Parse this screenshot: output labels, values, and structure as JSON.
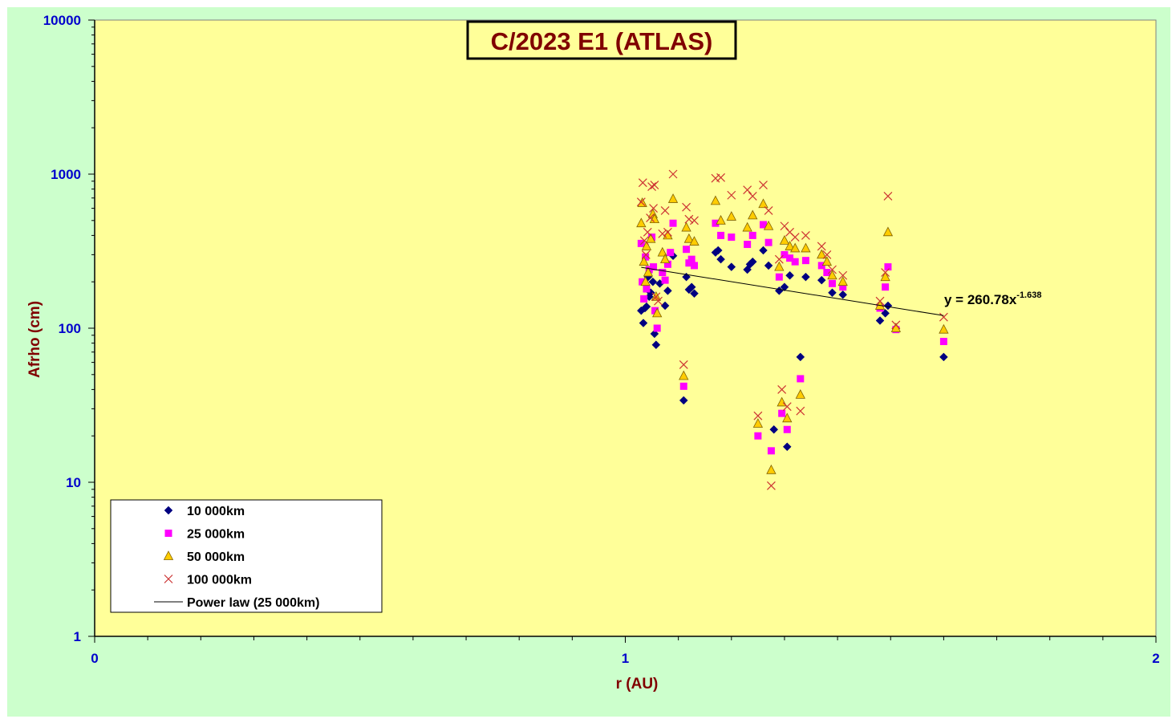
{
  "chart_data": {
    "type": "scatter",
    "title": "C/2023 E1 (ATLAS)",
    "xlabel": "r (AU)",
    "ylabel": "Afrho (cm)",
    "x_scale": "linear",
    "y_scale": "log",
    "xlim": [
      0,
      2
    ],
    "ylim": [
      1,
      10000
    ],
    "x_ticks": [
      "0",
      "1",
      "2"
    ],
    "y_ticks": [
      "1",
      "10",
      "100",
      "1000",
      "10000"
    ],
    "grid": false,
    "legend_position": "bottom-left",
    "colors": {
      "plot_background": "#ffff99",
      "chart_background": "#ccffcc",
      "series_10000km": "#000080",
      "series_25000km": "#ff00ff",
      "series_50000km": "#ffcc00",
      "series_100000km": "#cc3333",
      "axis_text": "#0000cc",
      "title_text": "#800000"
    },
    "series": [
      {
        "name": "10 000km",
        "marker": "diamond",
        "points": [
          [
            1.03,
            130
          ],
          [
            1.034,
            108
          ],
          [
            1.037,
            135
          ],
          [
            1.04,
            138
          ],
          [
            1.043,
            215
          ],
          [
            1.045,
            160
          ],
          [
            1.048,
            170
          ],
          [
            1.052,
            200
          ],
          [
            1.055,
            92
          ],
          [
            1.058,
            78
          ],
          [
            1.065,
            195
          ],
          [
            1.075,
            140
          ],
          [
            1.08,
            175
          ],
          [
            1.09,
            295
          ],
          [
            1.11,
            34
          ],
          [
            1.115,
            215
          ],
          [
            1.12,
            178
          ],
          [
            1.125,
            185
          ],
          [
            1.13,
            168
          ],
          [
            1.17,
            310
          ],
          [
            1.175,
            320
          ],
          [
            1.18,
            280
          ],
          [
            1.2,
            250
          ],
          [
            1.23,
            240
          ],
          [
            1.235,
            260
          ],
          [
            1.24,
            270
          ],
          [
            1.26,
            320
          ],
          [
            1.27,
            255
          ],
          [
            1.28,
            22
          ],
          [
            1.29,
            175
          ],
          [
            1.3,
            185
          ],
          [
            1.305,
            17
          ],
          [
            1.31,
            220
          ],
          [
            1.33,
            65
          ],
          [
            1.34,
            215
          ],
          [
            1.37,
            205
          ],
          [
            1.39,
            170
          ],
          [
            1.41,
            165
          ],
          [
            1.48,
            112
          ],
          [
            1.49,
            125
          ],
          [
            1.495,
            140
          ],
          [
            1.51,
            100
          ],
          [
            1.6,
            65
          ]
        ]
      },
      {
        "name": "25 000km",
        "marker": "square",
        "points": [
          [
            1.03,
            355
          ],
          [
            1.032,
            200
          ],
          [
            1.035,
            155
          ],
          [
            1.038,
            290
          ],
          [
            1.04,
            180
          ],
          [
            1.045,
            240
          ],
          [
            1.05,
            390
          ],
          [
            1.053,
            250
          ],
          [
            1.056,
            130
          ],
          [
            1.06,
            100
          ],
          [
            1.07,
            230
          ],
          [
            1.075,
            205
          ],
          [
            1.08,
            260
          ],
          [
            1.085,
            310
          ],
          [
            1.09,
            480
          ],
          [
            1.11,
            42
          ],
          [
            1.115,
            325
          ],
          [
            1.12,
            265
          ],
          [
            1.125,
            280
          ],
          [
            1.13,
            255
          ],
          [
            1.17,
            480
          ],
          [
            1.18,
            400
          ],
          [
            1.2,
            390
          ],
          [
            1.23,
            350
          ],
          [
            1.24,
            400
          ],
          [
            1.25,
            20
          ],
          [
            1.26,
            470
          ],
          [
            1.27,
            360
          ],
          [
            1.275,
            16
          ],
          [
            1.29,
            215
          ],
          [
            1.295,
            28
          ],
          [
            1.3,
            300
          ],
          [
            1.305,
            22
          ],
          [
            1.31,
            285
          ],
          [
            1.32,
            270
          ],
          [
            1.33,
            47
          ],
          [
            1.34,
            275
          ],
          [
            1.37,
            255
          ],
          [
            1.38,
            230
          ],
          [
            1.39,
            195
          ],
          [
            1.41,
            185
          ],
          [
            1.48,
            135
          ],
          [
            1.49,
            185
          ],
          [
            1.495,
            250
          ],
          [
            1.51,
            98
          ],
          [
            1.6,
            82
          ]
        ]
      },
      {
        "name": "50 000km",
        "marker": "triangle",
        "points": [
          [
            1.03,
            480
          ],
          [
            1.032,
            650
          ],
          [
            1.035,
            270
          ],
          [
            1.038,
            200
          ],
          [
            1.04,
            340
          ],
          [
            1.043,
            230
          ],
          [
            1.048,
            380
          ],
          [
            1.052,
            550
          ],
          [
            1.055,
            510
          ],
          [
            1.058,
            160
          ],
          [
            1.06,
            125
          ],
          [
            1.07,
            310
          ],
          [
            1.075,
            280
          ],
          [
            1.08,
            400
          ],
          [
            1.09,
            690
          ],
          [
            1.11,
            49
          ],
          [
            1.115,
            450
          ],
          [
            1.12,
            380
          ],
          [
            1.13,
            365
          ],
          [
            1.17,
            670
          ],
          [
            1.18,
            500
          ],
          [
            1.2,
            530
          ],
          [
            1.23,
            450
          ],
          [
            1.24,
            540
          ],
          [
            1.25,
            24
          ],
          [
            1.26,
            640
          ],
          [
            1.27,
            460
          ],
          [
            1.275,
            12
          ],
          [
            1.29,
            250
          ],
          [
            1.295,
            33
          ],
          [
            1.3,
            370
          ],
          [
            1.305,
            26
          ],
          [
            1.31,
            340
          ],
          [
            1.32,
            330
          ],
          [
            1.33,
            37
          ],
          [
            1.34,
            330
          ],
          [
            1.37,
            300
          ],
          [
            1.38,
            270
          ],
          [
            1.39,
            220
          ],
          [
            1.41,
            200
          ],
          [
            1.48,
            140
          ],
          [
            1.49,
            215
          ],
          [
            1.495,
            420
          ],
          [
            1.51,
            100
          ],
          [
            1.6,
            98
          ]
        ]
      },
      {
        "name": "100 000km",
        "marker": "cross",
        "points": [
          [
            1.03,
            660
          ],
          [
            1.033,
            880
          ],
          [
            1.036,
            370
          ],
          [
            1.039,
            300
          ],
          [
            1.042,
            420
          ],
          [
            1.047,
            520
          ],
          [
            1.05,
            830
          ],
          [
            1.053,
            600
          ],
          [
            1.055,
            850
          ],
          [
            1.058,
            160
          ],
          [
            1.062,
            150
          ],
          [
            1.07,
            410
          ],
          [
            1.075,
            580
          ],
          [
            1.08,
            420
          ],
          [
            1.09,
            1000
          ],
          [
            1.11,
            58
          ],
          [
            1.115,
            610
          ],
          [
            1.12,
            510
          ],
          [
            1.13,
            500
          ],
          [
            1.17,
            940
          ],
          [
            1.18,
            950
          ],
          [
            1.2,
            730
          ],
          [
            1.23,
            790
          ],
          [
            1.24,
            720
          ],
          [
            1.25,
            27
          ],
          [
            1.26,
            850
          ],
          [
            1.27,
            580
          ],
          [
            1.275,
            9.5
          ],
          [
            1.29,
            280
          ],
          [
            1.295,
            40
          ],
          [
            1.3,
            460
          ],
          [
            1.305,
            31
          ],
          [
            1.31,
            420
          ],
          [
            1.32,
            390
          ],
          [
            1.33,
            29
          ],
          [
            1.34,
            400
          ],
          [
            1.37,
            340
          ],
          [
            1.38,
            300
          ],
          [
            1.39,
            240
          ],
          [
            1.41,
            220
          ],
          [
            1.48,
            150
          ],
          [
            1.49,
            230
          ],
          [
            1.495,
            720
          ],
          [
            1.51,
            105
          ],
          [
            1.6,
            118
          ]
        ]
      }
    ],
    "trendline": {
      "name": "Power law (25 000km)",
      "series": "25 000km",
      "type": "power",
      "coefficient": 260.78,
      "exponent": -1.638,
      "x_range": [
        1.03,
        1.6
      ],
      "equation_main": "y = 260.78x",
      "equation_exponent": "-1.638"
    }
  }
}
